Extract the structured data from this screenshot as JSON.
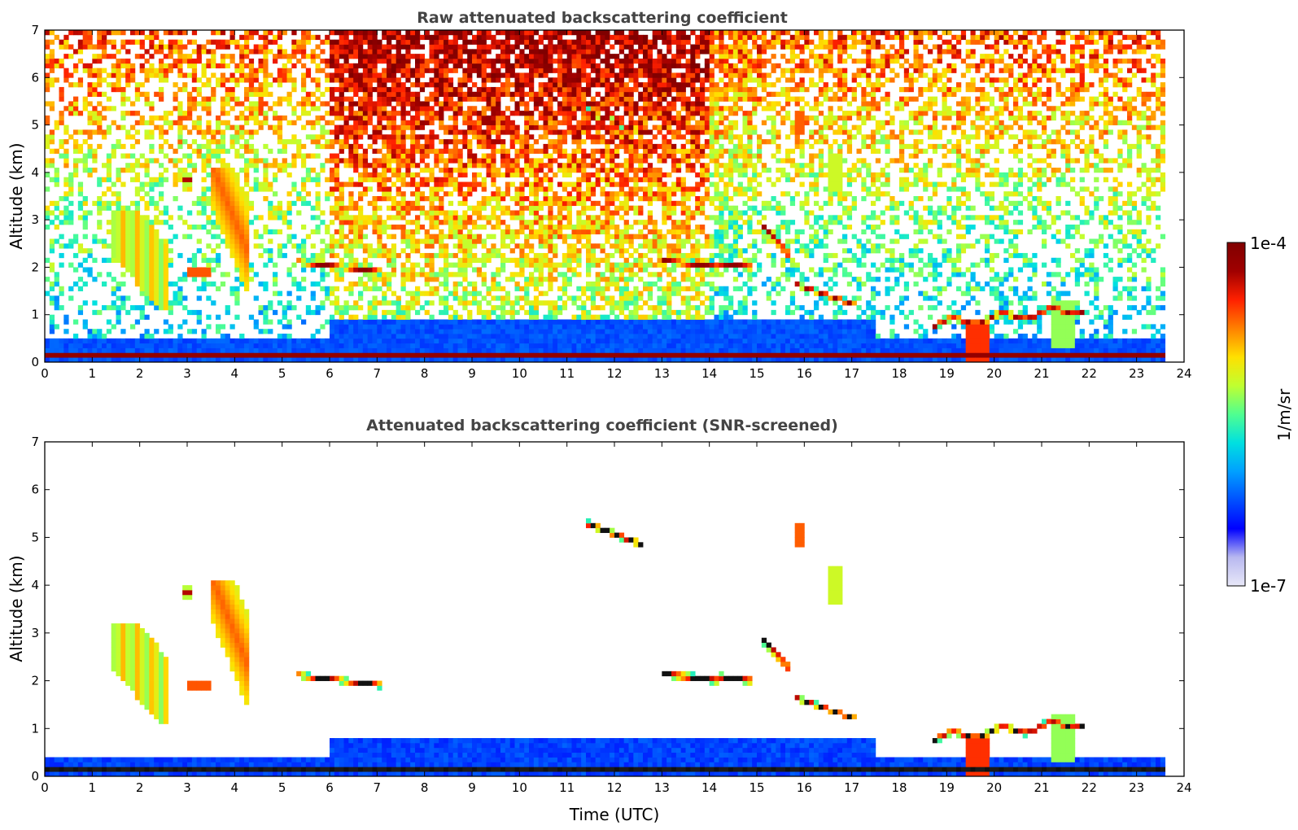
{
  "chart_data": [
    {
      "type": "heatmap",
      "title": "Raw attenuated backscattering coefficient",
      "xlabel": "",
      "ylabel": "Altitude (km)",
      "xlim": [
        0,
        24
      ],
      "ylim": [
        0,
        7
      ],
      "xticks": [
        "0",
        "1",
        "2",
        "3",
        "4",
        "5",
        "6",
        "7",
        "8",
        "9",
        "10",
        "11",
        "12",
        "13",
        "14",
        "15",
        "16",
        "17",
        "18",
        "19",
        "20",
        "21",
        "22",
        "23",
        "24"
      ],
      "yticks": [
        "0",
        "1",
        "2",
        "3",
        "4",
        "5",
        "6",
        "7"
      ],
      "data_end_time": 23.6,
      "features": [
        {
          "kind": "surface_layer",
          "t": [
            0,
            23.6
          ],
          "alt": [
            0.05,
            0.2
          ],
          "level": "high"
        },
        {
          "kind": "boundary_layer_blue",
          "t": [
            0,
            23.6
          ],
          "alt": [
            0,
            0.9
          ],
          "level": "low"
        },
        {
          "kind": "cloud_layer",
          "t": [
            5.3,
            7.1
          ],
          "alt": [
            1.9,
            2.15
          ],
          "level": "high"
        },
        {
          "kind": "cloud_layer",
          "t": [
            11.4,
            12.6
          ],
          "alt": [
            4.8,
            5.3
          ],
          "level": "high"
        },
        {
          "kind": "cloud_layer",
          "t": [
            13.0,
            14.9
          ],
          "alt": [
            1.85,
            2.3
          ],
          "level": "high"
        },
        {
          "kind": "cloud_layer",
          "t": [
            15.8,
            17.1
          ],
          "alt": [
            1.1,
            1.7
          ],
          "level": "high"
        },
        {
          "kind": "cloud_layer",
          "t": [
            18.7,
            21.9
          ],
          "alt": [
            0.7,
            1.3
          ],
          "level": "high"
        },
        {
          "kind": "cirrus_streaks",
          "t": [
            1.4,
            4.4
          ],
          "alt": [
            1.1,
            4.1
          ],
          "level": "mid"
        },
        {
          "kind": "noise",
          "t": [
            0,
            23.6
          ],
          "alt": [
            1,
            7
          ],
          "level": "varies"
        }
      ]
    },
    {
      "type": "heatmap",
      "title": "Attenuated backscattering coefficient (SNR-screened)",
      "xlabel": "Time (UTC)",
      "ylabel": "Altitude (km)",
      "xlim": [
        0,
        24
      ],
      "ylim": [
        0,
        7
      ],
      "xticks": [
        "0",
        "1",
        "2",
        "3",
        "4",
        "5",
        "6",
        "7",
        "8",
        "9",
        "10",
        "11",
        "12",
        "13",
        "14",
        "15",
        "16",
        "17",
        "18",
        "19",
        "20",
        "21",
        "22",
        "23",
        "24"
      ],
      "yticks": [
        "0",
        "1",
        "2",
        "3",
        "4",
        "5",
        "6",
        "7"
      ],
      "data_end_time": 23.6
    }
  ],
  "colorbar": {
    "label": "1/m/sr",
    "min_label": "1e-7",
    "max_label": "1e-4",
    "colors": [
      "#e8e8f8",
      "#b8b8f0",
      "#0000ff",
      "#0050ff",
      "#00a0ff",
      "#00e0e0",
      "#50ff90",
      "#c0ff30",
      "#ffe000",
      "#ff8000",
      "#ff2000",
      "#a00000",
      "#800000"
    ]
  }
}
